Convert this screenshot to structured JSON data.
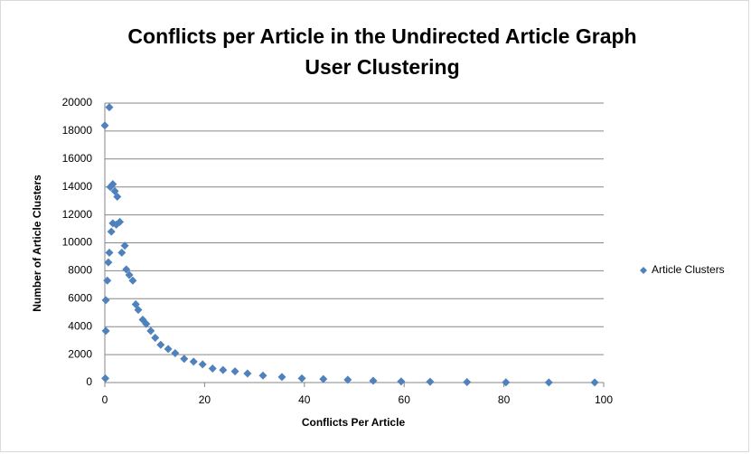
{
  "chart_data": {
    "type": "scatter",
    "title": "Conflicts per Article in the Undirected Article Graph",
    "subtitle": "User Clustering",
    "x_label": "Conflicts Per Article",
    "y_label": "Number of Article Clusters",
    "xlim": [
      0,
      100
    ],
    "xticks": [
      0,
      20,
      40,
      60,
      80,
      100
    ],
    "ylim": [
      0,
      20000
    ],
    "yticks": [
      0,
      2000,
      4000,
      6000,
      8000,
      10000,
      12000,
      14000,
      16000,
      18000,
      20000
    ],
    "grid": true,
    "legend": "right",
    "series": [
      {
        "name": "Article Clusters",
        "color": "#4f81bd",
        "x": [
          0,
          0.9,
          0.1,
          0.2,
          0.2,
          0.5,
          0.7,
          0.9,
          1.3,
          1.6,
          1.1,
          1.6,
          2,
          2.5,
          2.3,
          3,
          3.4,
          4,
          4.3,
          4.9,
          5.6,
          6.2,
          6.7,
          7.6,
          8.3,
          9.2,
          10.1,
          11.2,
          12.7,
          14.1,
          15.9,
          17.8,
          19.6,
          21.6,
          23.7,
          26.1,
          28.6,
          31.7,
          35.5,
          39.5,
          43.8,
          48.7,
          53.8,
          59.4,
          65.2,
          72.6,
          80.4,
          89,
          98.2
        ],
        "values": [
          18400,
          19700,
          300,
          3700,
          5900,
          7300,
          8600,
          9300,
          10800,
          11400,
          14000,
          14200,
          13700,
          13300,
          11300,
          11500,
          9300,
          9800,
          8100,
          7700,
          7300,
          5600,
          5200,
          4500,
          4200,
          3700,
          3200,
          2700,
          2400,
          2100,
          1700,
          1500,
          1300,
          1000,
          900,
          800,
          650,
          500,
          400,
          300,
          250,
          200,
          130,
          80,
          60,
          30,
          20,
          10,
          5
        ]
      }
    ]
  }
}
